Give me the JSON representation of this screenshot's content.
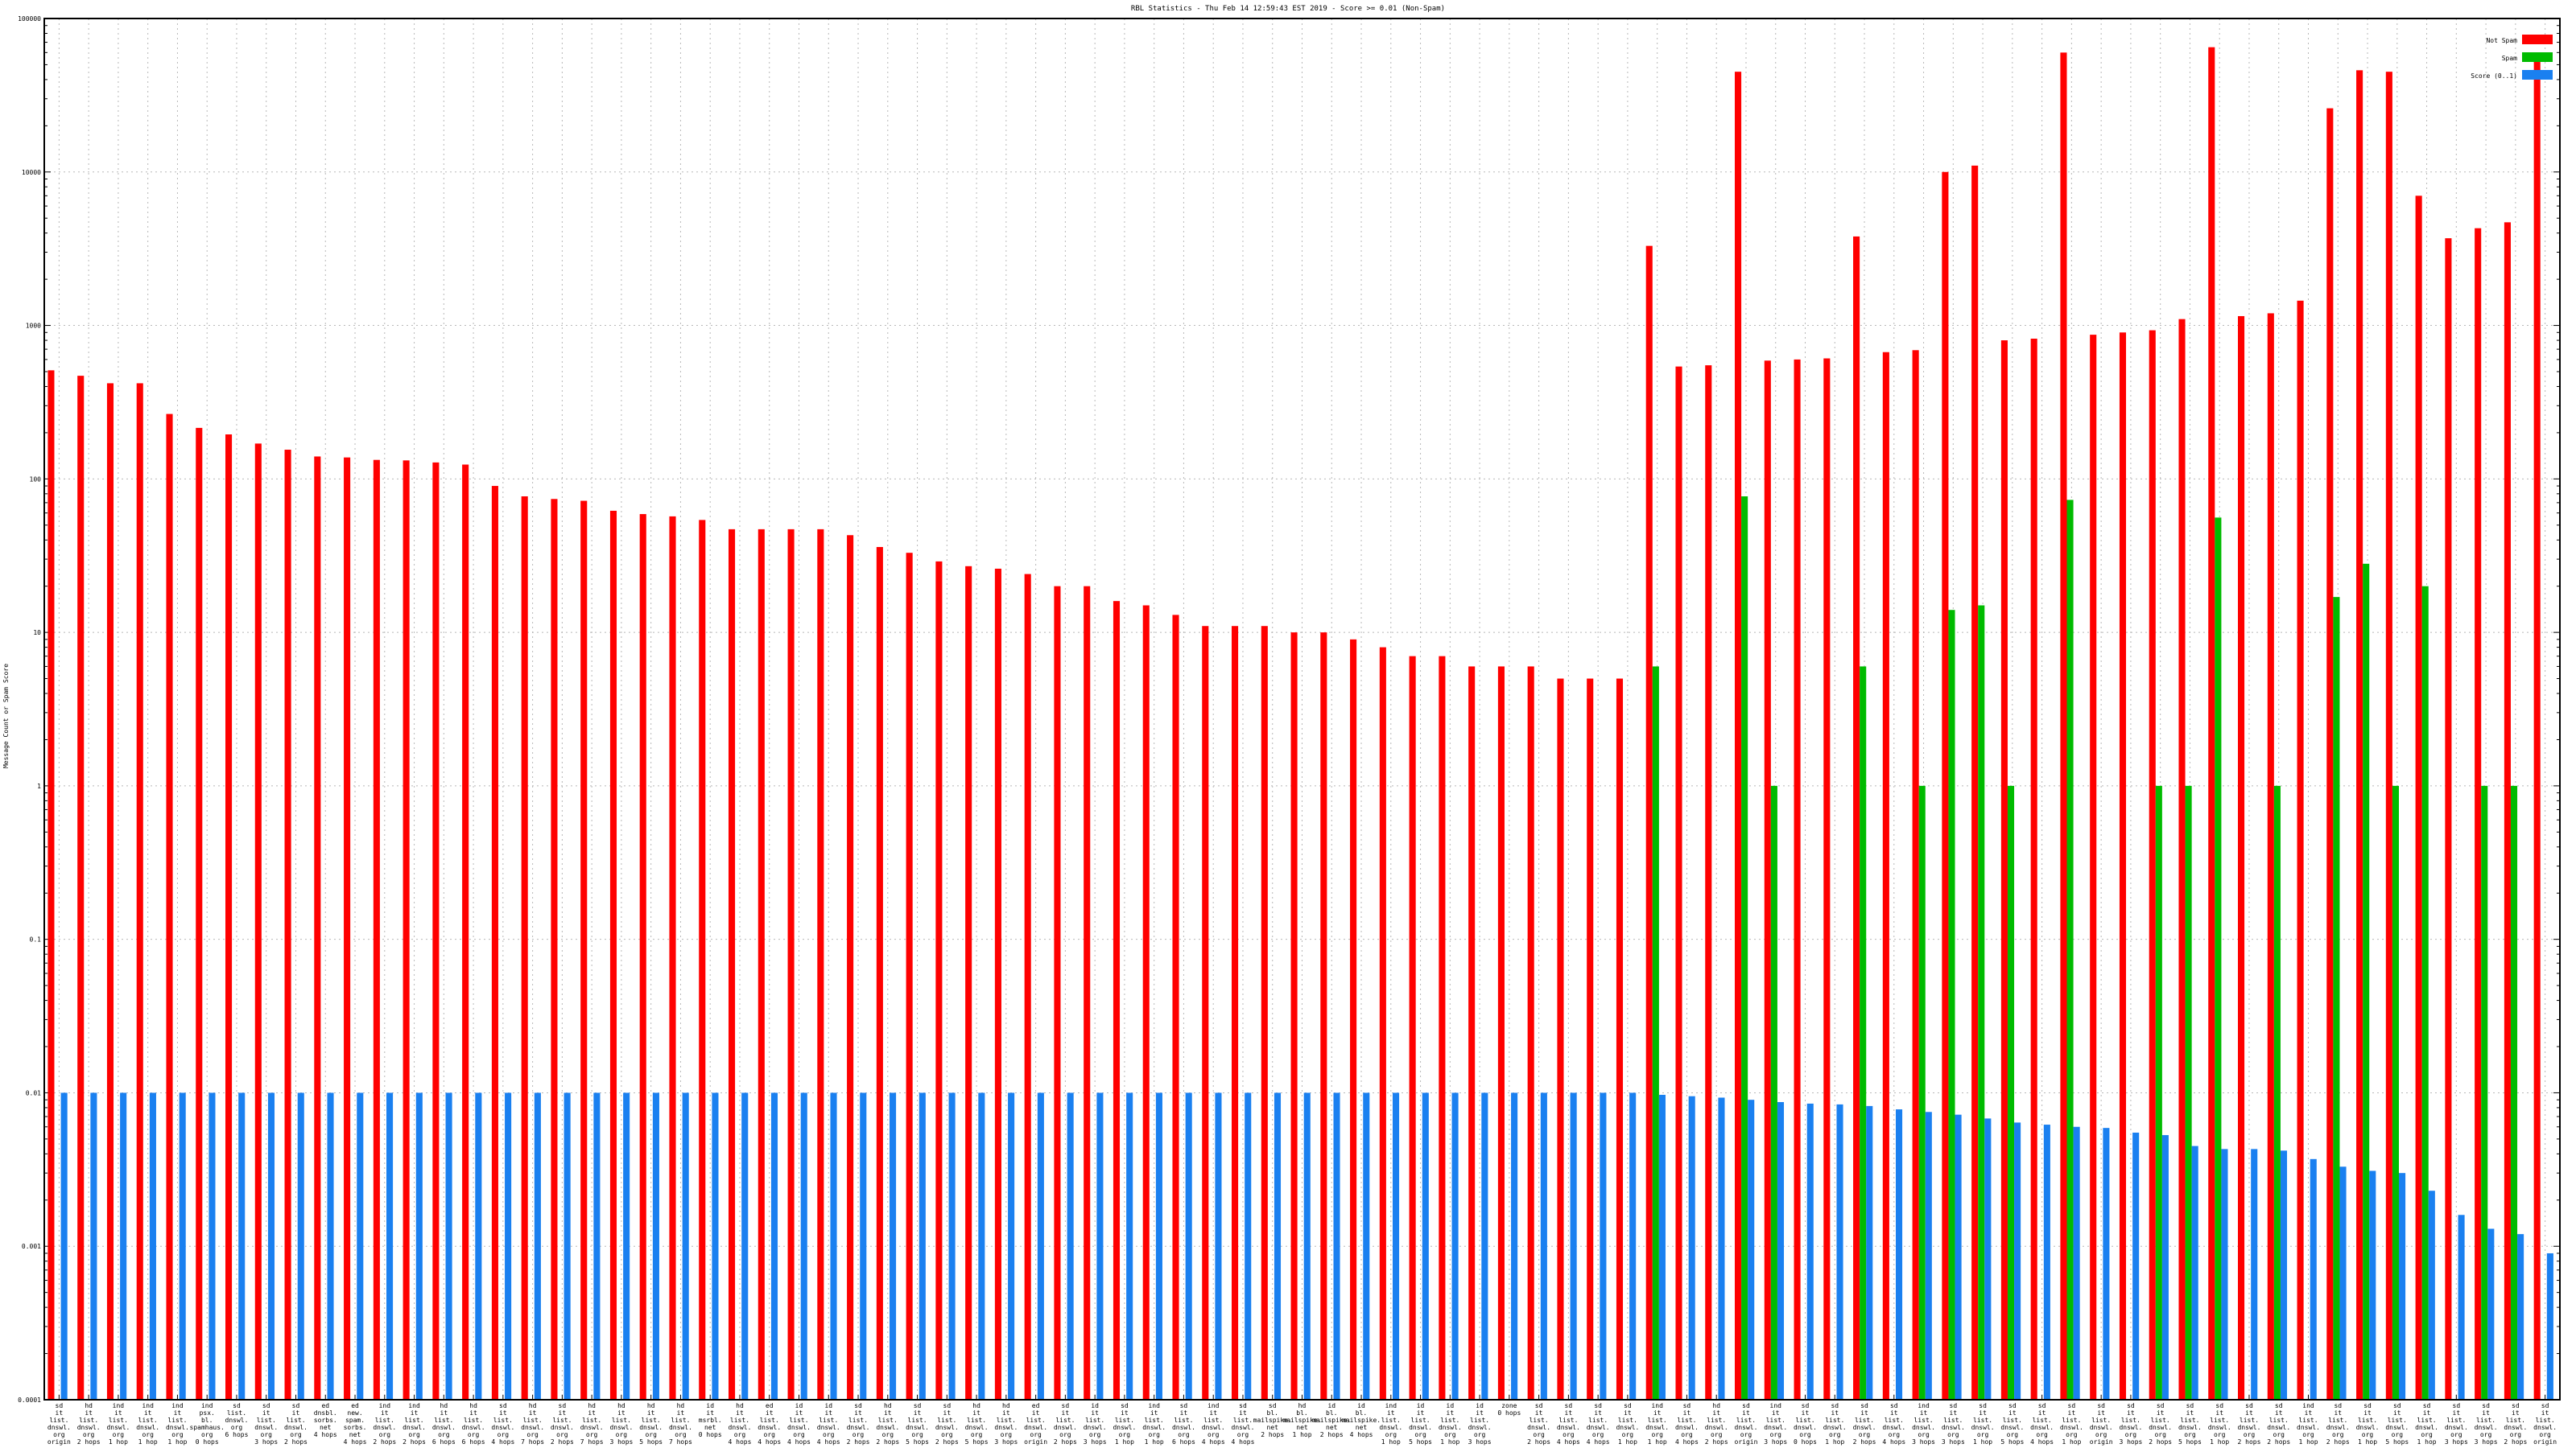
{
  "chart_data": {
    "type": "bar",
    "title": "RBL Statistics - Thu Feb 14 12:59:43 EST 2019 - Score >= 0.01 (Non-Spam)",
    "xlabel": "",
    "ylabel": "Message Count or Spam Score",
    "yscale": "log",
    "ylim": [
      0.0001,
      100000
    ],
    "yticks": [
      "0.0001",
      "0.001",
      "0.01",
      "0.1",
      "1",
      "10",
      "100",
      "1000",
      "10000",
      "100000"
    ],
    "grid": true,
    "legend_position": "top-right",
    "categories": [
      "sd\nit\nlist.\ndnswl.\norg\norigin",
      "hd\nit\nlist.\ndnswl.\norg\n2 hops",
      "ind\nit\nlist.\ndnswl.\norg\n1 hop",
      "ind\nit\nlist.\ndnswl.\norg\n1 hop",
      "ind\nit\nlist.\ndnswl.\norg\n1 hop",
      "ind\npsx.\nbl.\nspamhaus.\norg\n0 hops",
      "sd\nlist.\ndnswl.\norg\n6 hops",
      "sd\nit\nlist.\ndnswl.\norg\n3 hops",
      "sd\nit\nlist.\ndnswl.\norg\n2 hops",
      "ed\ndnsbl.\nsorbs.\nnet\n4 hops",
      "ed\nnew.\nspam.\nsorbs.\nnet\n4 hops",
      "ind\nit\nlist.\ndnswl.\norg\n2 hops",
      "ind\nit\nlist.\ndnswl.\norg\n2 hops",
      "hd\nit\nlist.\ndnswl.\norg\n6 hops",
      "hd\nit\nlist.\ndnswl.\norg\n6 hops",
      "sd\nit\nlist.\ndnswl.\norg\n4 hops",
      "hd\nit\nlist.\ndnswl.\norg\n7 hops",
      "sd\nit\nlist.\ndnswl.\norg\n2 hops",
      "hd\nit\nlist.\ndnswl.\norg\n7 hops",
      "hd\nit\nlist.\ndnswl.\norg\n3 hops",
      "hd\nit\nlist.\ndnswl.\norg\n5 hops",
      "hd\nit\nlist.\ndnswl.\norg\n7 hops",
      "id\nit\nmsrbl.\nnet\n0 hops",
      "hd\nit\nlist.\ndnswl.\norg\n4 hops",
      "ed\nit\nlist.\ndnswl.\norg\n4 hops",
      "id\nit\nlist.\ndnswl.\norg\n4 hops",
      "id\nit\nlist.\ndnswl.\norg\n4 hops",
      "sd\nit\nlist.\ndnswl.\norg\n2 hops",
      "hd\nit\nlist.\ndnswl.\norg\n2 hops",
      "sd\nit\nlist.\ndnswl.\norg\n5 hops",
      "sd\nit\nlist.\ndnswl.\norg\n2 hops",
      "hd\nit\nlist.\ndnswl.\norg\n5 hops",
      "hd\nit\nlist.\ndnswl.\norg\n3 hops",
      "ed\nit\nlist.\ndnswl.\norg\norigin",
      "sd\nit\nlist.\ndnswl.\norg\n2 hops",
      "id\nit\nlist.\ndnswl.\norg\n3 hops",
      "sd\nit\nlist.\ndnswl.\norg\n1 hop",
      "ind\nit\nlist.\ndnswl.\norg\n1 hop",
      "sd\nit\nlist.\ndnswl.\norg\n6 hops",
      "ind\nit\nlist.\ndnswl.\norg\n4 hops",
      "sd\nit\nlist.\ndnswl.\norg\n4 hops",
      "sd\nbl.\nmailspike.\nnet\n2 hops",
      "hd\nbl.\nmailspike.\nnet\n1 hop",
      "id\nbl.\nmailspike.\nnet\n2 hops",
      "id\nbl.\nmailspike.\nnet\n4 hops",
      "ind\nit\nlist.\ndnswl.\norg\n1 hop",
      "id\nit\nlist.\ndnswl.\norg\n5 hops",
      "id\nit\nlist.\ndnswl.\norg\n1 hop",
      "id\nit\nlist.\ndnswl.\norg\n3 hops",
      "zone\n0 hops",
      "sd\nit\nlist.\ndnswl.\norg\n2 hops",
      "sd\nit\nlist.\ndnswl.\norg\n4 hops",
      "sd\nit\nlist.\ndnswl.\norg\n4 hops",
      "sd\nit\nlist.\ndnswl.\norg\n1 hop",
      "ind\nit\nlist.\ndnswl.\norg\n1 hop",
      "sd\nit\nlist.\ndnswl.\norg\n4 hops",
      "hd\nit\nlist.\ndnswl.\norg\n2 hops",
      "sd\nit\nlist.\ndnswl.\norg\norigin",
      "ind\nit\nlist.\ndnswl.\norg\n3 hops",
      "sd\nit\nlist.\ndnswl.\norg\n0 hops",
      "sd\nit\nlist.\ndnswl.\norg\n1 hop",
      "sd\nit\nlist.\ndnswl.\norg\n2 hops",
      "sd\nit\nlist.\ndnswl.\norg\n4 hops",
      "ind\nit\nlist.\ndnswl.\norg\n3 hops",
      "sd\nit\nlist.\ndnswl.\norg\n3 hops",
      "sd\nit\nlist.\ndnswl.\norg\n1 hop",
      "sd\nit\nlist.\ndnswl.\norg\n5 hops",
      "sd\nit\nlist.\ndnswl.\norg\n4 hops",
      "sd\nit\nlist.\ndnswl.\norg\n1 hop",
      "sd\nit\nlist.\ndnswl.\norg\norigin",
      "sd\nit\nlist.\ndnswl.\norg\n3 hops",
      "sd\nit\nlist.\ndnswl.\norg\n2 hops",
      "sd\nit\nlist.\ndnswl.\norg\n5 hops",
      "sd\nit\nlist.\ndnswl.\norg\n1 hop",
      "sd\nit\nlist.\ndnswl.\norg\n2 hops",
      "sd\nit\nlist.\ndnswl.\norg\n2 hops",
      "ind\nit\nlist.\ndnswl.\norg\n1 hop",
      "sd\nit\nlist.\ndnswl.\norg\n2 hops",
      "sd\nit\nlist.\ndnswl.\norg\n1 hop",
      "sd\nit\nlist.\ndnswl.\norg\n5 hops",
      "sd\nit\nlist.\ndnswl.\norg\n1 hop",
      "sd\nit\nlist.\ndnswl.\norg\n3 hops",
      "sd\nit\nlist.\ndnswl.\norg\n3 hops",
      "sd\nit\nlist.\ndnswl.\norg\n2 hops",
      "sd\nit\nlist.\ndnswl.\norg\norigin"
    ],
    "series": [
      {
        "name": "Not Spam",
        "color": "#ff0000",
        "values": [
          510,
          470,
          420,
          420,
          265,
          215,
          195,
          170,
          155,
          140,
          138,
          133,
          132,
          128,
          124,
          90,
          77,
          74,
          72,
          62,
          59,
          57,
          54,
          47,
          47,
          47,
          47,
          43,
          36,
          33,
          29,
          27,
          26,
          24,
          20,
          20,
          16,
          15,
          13,
          11,
          11,
          11,
          10,
          10,
          9,
          8,
          7,
          7,
          6,
          6,
          6,
          5,
          5,
          5,
          3300,
          540,
          550,
          45000,
          590,
          600,
          610,
          3800,
          670,
          690,
          10000,
          11000,
          800,
          820,
          60000,
          870,
          900,
          930,
          1100,
          65000,
          1150,
          1200,
          1450,
          26000,
          46000,
          45000,
          7000,
          3700,
          4300,
          4700,
          60000
        ]
      },
      {
        "name": "Spam",
        "color": "#00bb00",
        "values": [
          0,
          0,
          0,
          0,
          0,
          0,
          0,
          0,
          0,
          0,
          0,
          0,
          0,
          0,
          0,
          0,
          0,
          0,
          0,
          0,
          0,
          0,
          0,
          0,
          0,
          0,
          0,
          0,
          0,
          0,
          0,
          0,
          0,
          0,
          0,
          0,
          0,
          0,
          0,
          0,
          0,
          0,
          0,
          0,
          0,
          0,
          0,
          0,
          0,
          0,
          0,
          0,
          0,
          0,
          6,
          0,
          0,
          77,
          1,
          0,
          0,
          6,
          0,
          1,
          14,
          15,
          1,
          0,
          73,
          0,
          0,
          1,
          1,
          56,
          0,
          1,
          0,
          17,
          28,
          1,
          20,
          0,
          1,
          1,
          0
        ]
      },
      {
        "name": "Score (0..1)",
        "color": "#1a80f0",
        "values": [
          0.01,
          0.01,
          0.01,
          0.01,
          0.01,
          0.01,
          0.01,
          0.01,
          0.01,
          0.01,
          0.01,
          0.01,
          0.01,
          0.01,
          0.01,
          0.01,
          0.01,
          0.01,
          0.01,
          0.01,
          0.01,
          0.01,
          0.01,
          0.01,
          0.01,
          0.01,
          0.01,
          0.01,
          0.01,
          0.01,
          0.01,
          0.01,
          0.01,
          0.01,
          0.01,
          0.01,
          0.01,
          0.01,
          0.01,
          0.01,
          0.01,
          0.01,
          0.01,
          0.01,
          0.01,
          0.01,
          0.01,
          0.01,
          0.01,
          0.01,
          0.01,
          0.01,
          0.01,
          0.01,
          0.0097,
          0.0095,
          0.0093,
          0.009,
          0.0087,
          0.0085,
          0.0084,
          0.0082,
          0.0078,
          0.0075,
          0.0072,
          0.0068,
          0.0064,
          0.0062,
          0.006,
          0.0059,
          0.0055,
          0.0053,
          0.0045,
          0.0043,
          0.0043,
          0.0042,
          0.0037,
          0.0033,
          0.0031,
          0.003,
          0.0023,
          0.0016,
          0.0013,
          0.0012,
          0.0009
        ]
      }
    ]
  }
}
